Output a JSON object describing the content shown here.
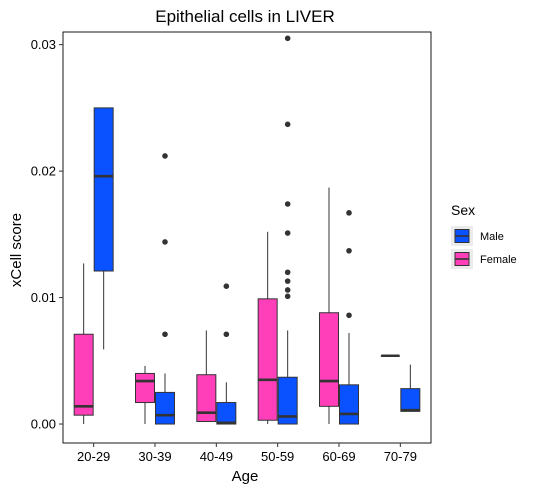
{
  "chart_data": {
    "type": "boxplot",
    "title": "Epithelial cells in LIVER",
    "xlabel": "Age",
    "ylabel": "xCell score",
    "categories": [
      "20-29",
      "30-39",
      "40-49",
      "50-59",
      "60-69",
      "70-79"
    ],
    "ylim": [
      -0.0015,
      0.031
    ],
    "yticks": [
      0.0,
      0.01,
      0.02,
      0.03
    ],
    "ytick_labels": [
      "0.00",
      "0.01",
      "0.02",
      "0.03"
    ],
    "legend": {
      "title": "Sex",
      "position": "right",
      "entries": [
        {
          "name": "Male",
          "color": "#0A52FF"
        },
        {
          "name": "Female",
          "color": "#FF3FB9"
        }
      ]
    },
    "series": [
      {
        "name": "Female",
        "color": "#FF3FB9",
        "boxes": [
          {
            "category": "20-29",
            "min": 0.0,
            "q1": 0.0007,
            "median": 0.0014,
            "q3": 0.0071,
            "max": 0.0127,
            "outliers": []
          },
          {
            "category": "30-39",
            "min": 0.0,
            "q1": 0.0017,
            "median": 0.0034,
            "q3": 0.004,
            "max": 0.0046,
            "outliers": []
          },
          {
            "category": "40-49",
            "min": 0.0002,
            "q1": 0.0002,
            "median": 0.0009,
            "q3": 0.0039,
            "max": 0.0074,
            "outliers": []
          },
          {
            "category": "50-59",
            "min": 0.0,
            "q1": 0.0003,
            "median": 0.0035,
            "q3": 0.0099,
            "max": 0.0152,
            "outliers": []
          },
          {
            "category": "60-69",
            "min": 0.0,
            "q1": 0.0014,
            "median": 0.0034,
            "q3": 0.0088,
            "max": 0.0187,
            "outliers": []
          },
          {
            "category": "70-79",
            "min": 0.0054,
            "q1": 0.0054,
            "median": 0.0054,
            "q3": 0.0054,
            "max": 0.0054,
            "outliers": []
          }
        ]
      },
      {
        "name": "Male",
        "color": "#0A52FF",
        "boxes": [
          {
            "category": "20-29",
            "min": 0.0059,
            "q1": 0.0121,
            "median": 0.0196,
            "q3": 0.025,
            "max": 0.025,
            "outliers": []
          },
          {
            "category": "30-39",
            "min": 0.0,
            "q1": 0.0,
            "median": 0.0007,
            "q3": 0.0025,
            "max": 0.004,
            "outliers": [
              0.0071,
              0.0144,
              0.0212
            ]
          },
          {
            "category": "40-49",
            "min": 0.0,
            "q1": 0.0,
            "median": 0.0001,
            "q3": 0.0017,
            "max": 0.0033,
            "outliers": [
              0.0071,
              0.0109
            ]
          },
          {
            "category": "50-59",
            "min": 0.0,
            "q1": 0.0,
            "median": 0.0006,
            "q3": 0.0037,
            "max": 0.0074,
            "outliers": [
              0.0101,
              0.0106,
              0.0113,
              0.012,
              0.0151,
              0.0174,
              0.0237,
              0.0305
            ]
          },
          {
            "category": "60-69",
            "min": 0.0,
            "q1": 0.0,
            "median": 0.0008,
            "q3": 0.0031,
            "max": 0.0072,
            "outliers": [
              0.0086,
              0.0137,
              0.0167
            ]
          },
          {
            "category": "70-79",
            "min": 0.001,
            "q1": 0.001,
            "median": 0.0011,
            "q3": 0.0028,
            "max": 0.0047,
            "outliers": []
          }
        ]
      }
    ]
  }
}
